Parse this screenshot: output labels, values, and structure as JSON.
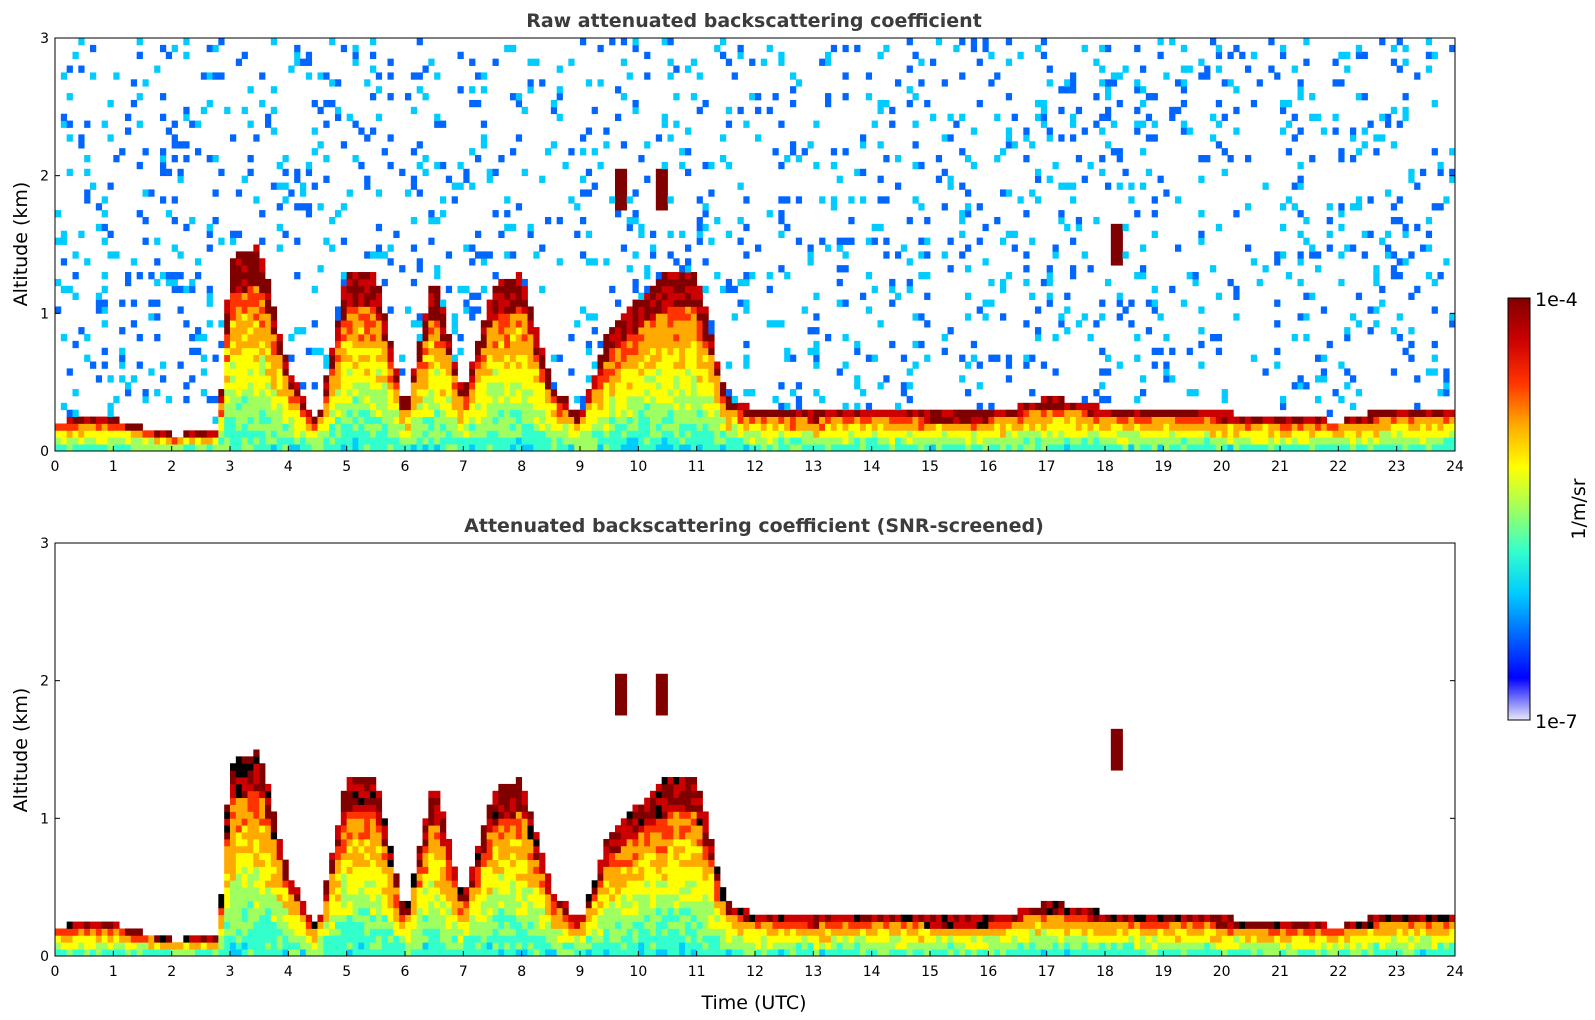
{
  "colormap": [
    "#e8e8f8",
    "#0000ff",
    "#0066ff",
    "#00ccff",
    "#33ffcc",
    "#a0ff60",
    "#ffff00",
    "#ffaa00",
    "#ff3300",
    "#cc0000",
    "#800000"
  ],
  "chart_data": [
    {
      "type": "heatmap",
      "title": "Raw attenuated backscattering coefficient",
      "xlabel": "",
      "ylabel": "Altitude (km)",
      "xlim": [
        0,
        24
      ],
      "ylim": [
        0,
        3
      ],
      "x_ticks": [
        "0",
        "1",
        "2",
        "3",
        "4",
        "5",
        "6",
        "7",
        "8",
        "9",
        "10",
        "11",
        "12",
        "13",
        "14",
        "15",
        "16",
        "17",
        "18",
        "19",
        "20",
        "21",
        "22",
        "23",
        "24"
      ],
      "y_ticks": [
        "0",
        "1",
        "2",
        "3"
      ],
      "grid": false,
      "screened": false,
      "layer_height_km": [
        [
          0,
          0.22
        ],
        [
          1,
          0.24
        ],
        [
          2,
          0.12
        ],
        [
          2.8,
          0.14
        ],
        [
          3,
          1.4
        ],
        [
          3.5,
          1.5
        ],
        [
          4,
          0.6
        ],
        [
          4.5,
          0.2
        ],
        [
          5,
          1.3
        ],
        [
          5.5,
          1.3
        ],
        [
          6,
          0.3
        ],
        [
          6.5,
          1.3
        ],
        [
          7,
          0.4
        ],
        [
          7.5,
          1.2
        ],
        [
          8,
          1.3
        ],
        [
          8.5,
          0.5
        ],
        [
          9,
          0.25
        ],
        [
          9.5,
          0.9
        ],
        [
          10,
          1.1
        ],
        [
          10.5,
          1.3
        ],
        [
          11,
          1.3
        ],
        [
          11.5,
          0.4
        ],
        [
          12,
          0.3
        ],
        [
          13,
          0.28
        ],
        [
          14,
          0.3
        ],
        [
          15,
          0.28
        ],
        [
          16,
          0.28
        ],
        [
          16.7,
          0.35
        ],
        [
          17,
          0.4
        ],
        [
          18,
          0.32
        ],
        [
          19,
          0.3
        ],
        [
          20,
          0.28
        ],
        [
          21,
          0.25
        ],
        [
          22,
          0.22
        ],
        [
          23,
          0.32
        ],
        [
          24,
          0.3
        ]
      ],
      "upper_layer_km": [
        [
          9.7,
          1.9
        ],
        [
          10.4,
          1.9
        ],
        [
          18.2,
          1.5
        ]
      ]
    },
    {
      "type": "heatmap",
      "title": "Attenuated backscattering coefficient (SNR-screened)",
      "xlabel": "Time (UTC)",
      "ylabel": "Altitude (km)",
      "xlim": [
        0,
        24
      ],
      "ylim": [
        0,
        3
      ],
      "x_ticks": [
        "0",
        "1",
        "2",
        "3",
        "4",
        "5",
        "6",
        "7",
        "8",
        "9",
        "10",
        "11",
        "12",
        "13",
        "14",
        "15",
        "16",
        "17",
        "18",
        "19",
        "20",
        "21",
        "22",
        "23",
        "24"
      ],
      "y_ticks": [
        "0",
        "1",
        "2",
        "3"
      ],
      "grid": false,
      "screened": true,
      "layer_height_km": [
        [
          0,
          0.22
        ],
        [
          1,
          0.24
        ],
        [
          2,
          0.12
        ],
        [
          2.8,
          0.14
        ],
        [
          3,
          1.4
        ],
        [
          3.5,
          1.5
        ],
        [
          4,
          0.6
        ],
        [
          4.5,
          0.2
        ],
        [
          5,
          1.3
        ],
        [
          5.5,
          1.3
        ],
        [
          6,
          0.3
        ],
        [
          6.5,
          1.3
        ],
        [
          7,
          0.4
        ],
        [
          7.5,
          1.2
        ],
        [
          8,
          1.3
        ],
        [
          8.5,
          0.5
        ],
        [
          9,
          0.25
        ],
        [
          9.5,
          0.9
        ],
        [
          10,
          1.1
        ],
        [
          10.5,
          1.3
        ],
        [
          11,
          1.3
        ],
        [
          11.5,
          0.4
        ],
        [
          12,
          0.3
        ],
        [
          13,
          0.28
        ],
        [
          14,
          0.3
        ],
        [
          15,
          0.28
        ],
        [
          16,
          0.28
        ],
        [
          16.7,
          0.35
        ],
        [
          17,
          0.4
        ],
        [
          18,
          0.32
        ],
        [
          19,
          0.3
        ],
        [
          20,
          0.28
        ],
        [
          21,
          0.25
        ],
        [
          22,
          0.22
        ],
        [
          23,
          0.32
        ],
        [
          24,
          0.3
        ]
      ],
      "upper_layer_km": [
        [
          9.7,
          1.9
        ],
        [
          10.4,
          1.9
        ],
        [
          18.2,
          1.5
        ]
      ]
    }
  ],
  "colorbar": {
    "label": "1/m/sr",
    "max_label": "1e-4",
    "min_label": "1e-7"
  }
}
